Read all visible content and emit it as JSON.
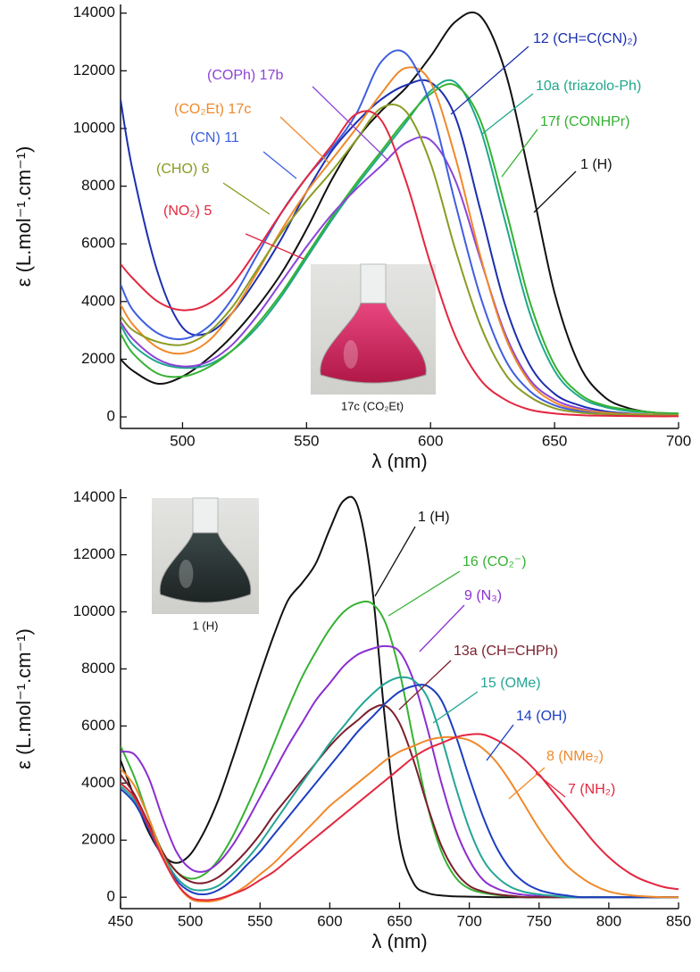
{
  "chart_data": [
    {
      "type": "line",
      "xlabel": "λ (nm)",
      "ylabel": "ε (L.mol⁻¹.cm⁻¹)",
      "xlim": [
        475,
        700
      ],
      "xticks": [
        500,
        550,
        600,
        650,
        700
      ],
      "ylim": [
        -400,
        14300
      ],
      "yticks": [
        0,
        2000,
        4000,
        6000,
        8000,
        10000,
        12000,
        14000
      ],
      "inset_caption": "17c (CO₂Et)",
      "x": [
        475,
        480,
        490,
        500,
        510,
        520,
        530,
        540,
        550,
        560,
        570,
        580,
        590,
        600,
        610,
        620,
        630,
        640,
        650,
        660,
        670,
        680,
        690,
        700
      ],
      "series": [
        {
          "name": "1 (H)",
          "color": "#111111",
          "values": [
            2000,
            1600,
            1150,
            1400,
            2000,
            2800,
            3800,
            5000,
            6500,
            8200,
            9600,
            10600,
            11400,
            12500,
            13700,
            13900,
            12000,
            8300,
            4300,
            1800,
            700,
            300,
            150,
            100
          ]
        },
        {
          "name": "12 (CH=C(CN)₂)",
          "color": "#1c2fb0",
          "values": [
            11000,
            8500,
            5000,
            3100,
            2900,
            3600,
            4800,
            6200,
            7800,
            9200,
            10200,
            11000,
            11500,
            11600,
            10400,
            7200,
            3900,
            1800,
            800,
            400,
            200,
            120,
            80,
            50
          ]
        },
        {
          "name": "10a (triazolo-Ph)",
          "color": "#20a88c",
          "values": [
            3200,
            2500,
            1900,
            1700,
            1800,
            2300,
            3100,
            4200,
            5500,
            6800,
            8000,
            9100,
            10200,
            11300,
            11600,
            10000,
            6800,
            3600,
            1600,
            700,
            350,
            200,
            150,
            120
          ]
        },
        {
          "name": "17f (CONHPr)",
          "color": "#35b233",
          "values": [
            2900,
            2200,
            1500,
            1400,
            1700,
            2300,
            3200,
            4300,
            5600,
            6900,
            8100,
            9200,
            10300,
            11200,
            11500,
            10300,
            7300,
            4000,
            1800,
            800,
            400,
            250,
            150,
            120
          ]
        },
        {
          "name": "(COPh) 17b",
          "color": "#8b44d8",
          "values": [
            3300,
            2700,
            2000,
            1750,
            1900,
            2500,
            3500,
            4700,
            5900,
            7000,
            7900,
            8700,
            9500,
            9600,
            8200,
            5500,
            2900,
            1300,
            600,
            300,
            150,
            100,
            80,
            60
          ]
        },
        {
          "name": "(CO₂Et) 17c",
          "color": "#f0892a",
          "values": [
            3900,
            3200,
            2400,
            2200,
            2600,
            3600,
            5000,
            6500,
            7800,
            8900,
            10000,
            11200,
            12100,
            11600,
            9000,
            5600,
            2800,
            1200,
            500,
            250,
            150,
            100,
            80,
            60
          ]
        },
        {
          "name": "(CN) 11",
          "color": "#3e5fe0",
          "values": [
            4600,
            3700,
            2900,
            2700,
            3100,
            4100,
            5600,
            7100,
            8300,
            9300,
            10500,
            12300,
            12600,
            10800,
            7400,
            4200,
            2000,
            900,
            400,
            200,
            100,
            80,
            60,
            50
          ]
        },
        {
          "name": "(CHO) 6",
          "color": "#8a9b22",
          "values": [
            3500,
            3000,
            2600,
            2500,
            2900,
            3800,
            5100,
            6400,
            7500,
            8500,
            9600,
            10700,
            10600,
            8800,
            5800,
            3200,
            1500,
            700,
            300,
            150,
            100,
            80,
            60,
            50
          ]
        },
        {
          "name": "(NO₂) 5",
          "color": "#e3263e",
          "values": [
            5300,
            4800,
            4000,
            3700,
            3900,
            4600,
            5800,
            7100,
            8300,
            9400,
            10500,
            10300,
            8200,
            5300,
            2800,
            1300,
            600,
            250,
            120,
            60,
            40,
            30,
            20,
            20
          ]
        }
      ]
    },
    {
      "type": "line",
      "xlabel": "λ (nm)",
      "ylabel": "ε (L.mol⁻¹.cm⁻¹)",
      "xlim": [
        450,
        850
      ],
      "xticks": [
        450,
        500,
        550,
        600,
        650,
        700,
        750,
        800,
        850
      ],
      "ylim": [
        -400,
        14300
      ],
      "yticks": [
        0,
        2000,
        4000,
        6000,
        8000,
        10000,
        12000,
        14000
      ],
      "inset_caption": "1 (H)",
      "x": [
        450,
        460,
        470,
        480,
        490,
        500,
        510,
        520,
        530,
        540,
        550,
        560,
        570,
        580,
        590,
        600,
        610,
        620,
        630,
        640,
        650,
        660,
        670,
        680,
        690,
        700,
        710,
        720,
        730,
        740,
        750,
        760,
        770,
        780,
        790,
        800,
        810,
        820,
        830,
        840,
        850
      ],
      "series": [
        {
          "name": "1 (H)",
          "color": "#111111",
          "values": [
            4800,
            3500,
            2300,
            1500,
            1200,
            1500,
            2300,
            3400,
            4800,
            6300,
            7800,
            9200,
            10400,
            11000,
            11700,
            12900,
            13900,
            13700,
            11000,
            6000,
            2000,
            500,
            150,
            60,
            30,
            20,
            10,
            0,
            0,
            0,
            0,
            0,
            0,
            0,
            0,
            0,
            0,
            0,
            0,
            0,
            0
          ]
        },
        {
          "name": "16 (CO₂⁻)",
          "color": "#35b233",
          "values": [
            5300,
            4200,
            2800,
            1600,
            900,
            650,
            800,
            1300,
            2100,
            3100,
            4200,
            5400,
            6600,
            7700,
            8600,
            9400,
            10000,
            10300,
            10300,
            9600,
            7900,
            5500,
            3200,
            1600,
            700,
            300,
            150,
            80,
            40,
            0,
            0,
            0,
            0,
            0,
            0,
            0,
            0,
            0,
            0,
            0,
            0
          ]
        },
        {
          "name": "9 (N₃)",
          "color": "#8b2fd0",
          "values": [
            5100,
            5000,
            4200,
            2800,
            1600,
            1000,
            900,
            1200,
            1800,
            2600,
            3500,
            4400,
            5300,
            6100,
            6900,
            7500,
            8100,
            8500,
            8700,
            8800,
            8600,
            7600,
            5900,
            4000,
            2400,
            1300,
            600,
            300,
            150,
            80,
            40,
            0,
            0,
            0,
            0,
            0,
            0,
            0,
            0,
            0,
            0
          ]
        },
        {
          "name": "13a (CH=CHPh)",
          "color": "#7b1f2c",
          "values": [
            4300,
            3600,
            2600,
            1600,
            900,
            550,
            500,
            700,
            1100,
            1600,
            2200,
            2900,
            3500,
            4100,
            4700,
            5300,
            5800,
            6200,
            6600,
            6700,
            6100,
            4800,
            3200,
            1800,
            900,
            400,
            200,
            100,
            50,
            0,
            0,
            0,
            0,
            0,
            0,
            0,
            0,
            0,
            0,
            0,
            0
          ]
        },
        {
          "name": "15 (OMe)",
          "color": "#25a596",
          "values": [
            3900,
            3400,
            2500,
            1500,
            700,
            300,
            250,
            400,
            800,
            1300,
            1900,
            2600,
            3300,
            4000,
            4700,
            5400,
            6000,
            6600,
            7100,
            7500,
            7700,
            7600,
            7000,
            5600,
            3900,
            2400,
            1300,
            700,
            350,
            180,
            100,
            50,
            0,
            0,
            0,
            0,
            0,
            0,
            0,
            0,
            0
          ]
        },
        {
          "name": "14 (OH)",
          "color": "#1d3fc0",
          "values": [
            3800,
            3300,
            2400,
            1400,
            600,
            200,
            100,
            250,
            600,
            1100,
            1600,
            2200,
            2800,
            3400,
            4000,
            4600,
            5200,
            5800,
            6300,
            6800,
            7200,
            7400,
            7400,
            6900,
            5700,
            4200,
            2800,
            1700,
            950,
            500,
            250,
            130,
            60,
            0,
            0,
            0,
            0,
            0,
            0,
            0,
            0
          ]
        },
        {
          "name": "8 (NMe₂)",
          "color": "#f0892a",
          "values": [
            4500,
            3900,
            2800,
            1500,
            500,
            -50,
            -150,
            -100,
            100,
            400,
            800,
            1200,
            1700,
            2200,
            2700,
            3200,
            3600,
            4000,
            4400,
            4800,
            5100,
            5300,
            5500,
            5600,
            5600,
            5500,
            5200,
            4700,
            4000,
            3200,
            2400,
            1700,
            1100,
            700,
            400,
            200,
            100,
            50,
            20,
            0,
            0
          ]
        },
        {
          "name": "7 (NH₂)",
          "color": "#e3263e",
          "values": [
            4000,
            3500,
            2500,
            1400,
            500,
            0,
            -100,
            -50,
            100,
            300,
            600,
            900,
            1300,
            1700,
            2100,
            2500,
            2900,
            3300,
            3700,
            4100,
            4500,
            4900,
            5200,
            5400,
            5600,
            5700,
            5700,
            5500,
            5200,
            4800,
            4300,
            3700,
            3100,
            2500,
            1900,
            1400,
            1000,
            700,
            500,
            350,
            280
          ]
        }
      ]
    }
  ]
}
